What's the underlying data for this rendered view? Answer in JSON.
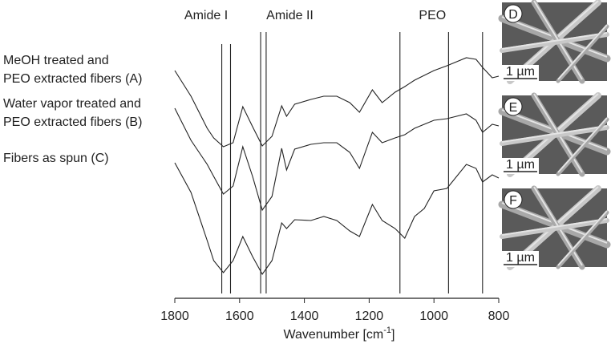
{
  "chart_data": {
    "type": "line",
    "xlabel": {
      "main": "Wavenumber [cm",
      "sup": "-1",
      "end": "]"
    },
    "xlim": [
      1800,
      800
    ],
    "xticks": [
      1800,
      1600,
      1400,
      1200,
      1000,
      800
    ],
    "ylim": [
      0,
      332
    ],
    "x": [
      1800,
      1750,
      1700,
      1680,
      1650,
      1620,
      1590,
      1560,
      1530,
      1500,
      1470,
      1455,
      1430,
      1380,
      1340,
      1300,
      1260,
      1230,
      1190,
      1160,
      1120,
      1090,
      1060,
      1030,
      1000,
      960,
      900,
      870,
      850,
      820,
      800
    ],
    "series": [
      {
        "name": [
          "MeOH treated and",
          "PEO extracted fibers (A)"
        ],
        "color": "#222222",
        "values": [
          284,
          252,
          212,
          200,
          189,
          194,
          239,
          214,
          190,
          202,
          240,
          227,
          242,
          248,
          252,
          252,
          244,
          232,
          260,
          244,
          257,
          264,
          272,
          278,
          284,
          290,
          300,
          298,
          288,
          275,
          277
        ]
      },
      {
        "name": [
          "Water vapor treated and",
          "PEO extracted fibers (B)"
        ],
        "color": "#222222",
        "values": [
          237,
          197,
          167,
          152,
          130,
          140,
          189,
          152,
          110,
          127,
          187,
          160,
          186,
          192,
          194,
          194,
          182,
          162,
          207,
          194,
          200,
          204,
          212,
          217,
          222,
          224,
          230,
          222,
          207,
          217,
          215
        ]
      },
      {
        "name": [
          "Fibers as spun (C)"
        ],
        "color": "#222222",
        "values": [
          169,
          132,
          72,
          47,
          32,
          47,
          77,
          52,
          30,
          47,
          94,
          87,
          98,
          97,
          102,
          97,
          84,
          77,
          117,
          97,
          87,
          75,
          102,
          112,
          134,
          137,
          167,
          162,
          145,
          154,
          150
        ]
      }
    ],
    "band_labels": [
      {
        "text": "Amide I",
        "lines": [
          1655,
          1628
        ]
      },
      {
        "text": "Amide II",
        "lines": [
          1535,
          1518
        ]
      },
      {
        "text": "PEO",
        "lines": [
          1105,
          955,
          850
        ]
      }
    ],
    "panels": [
      {
        "letter": "D",
        "scale": "1 µm"
      },
      {
        "letter": "E",
        "scale": "1 µm"
      },
      {
        "letter": "F",
        "scale": "1 µm"
      }
    ]
  }
}
